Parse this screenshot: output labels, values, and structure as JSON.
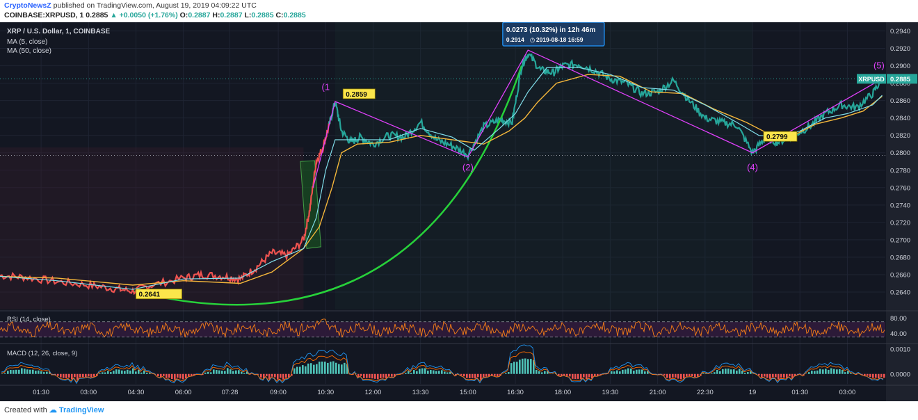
{
  "header": {
    "publisher": "CryptoNewsZ",
    "published_text": "published on TradingView.com, August 19, 2019 04:09:22 UTC",
    "symbol": "COINBASE:XRPUSD, 1",
    "last": "0.2885",
    "change": "+0.0050 (+1.76%)",
    "o_label": "O:",
    "o": "0.2887",
    "h_label": "H:",
    "h": "0.2887",
    "l_label": "L:",
    "l": "0.2885",
    "c_label": "C:",
    "c": "0.2885"
  },
  "footer": {
    "created_with": "Created with",
    "brand": "TradingView"
  },
  "chart_data": {
    "type": "line",
    "title": "XRP / U.S. Dollar, 1, COINBASE",
    "legend": [
      "MA (5, close)",
      "MA (50, close)"
    ],
    "x_ticks": [
      "01:30",
      "03:00",
      "04:30",
      "06:00",
      "07:28",
      "09:00",
      "10:30",
      "12:00",
      "13:30",
      "15:00",
      "16:30",
      "18:00",
      "19:30",
      "21:00",
      "22:30",
      "19",
      "01:30",
      "03:00"
    ],
    "x_tick_hours": [
      1.5,
      3,
      4.5,
      6,
      7.47,
      9,
      10.5,
      12,
      13.5,
      15,
      16.5,
      18,
      19.5,
      21,
      22.5,
      24,
      25.5,
      27
    ],
    "x_range_hours": [
      0.2,
      28.2
    ],
    "ylim": [
      0.262,
      0.295
    ],
    "y_ticks": [
      "0.2940",
      "0.2920",
      "0.2900",
      "0.2880",
      "0.2860",
      "0.2840",
      "0.2820",
      "0.2800",
      "0.2780",
      "0.2760",
      "0.2740",
      "0.2720",
      "0.2700",
      "0.2680",
      "0.2660",
      "0.2640"
    ],
    "y_tick_values": [
      0.294,
      0.292,
      0.29,
      0.288,
      0.286,
      0.284,
      0.282,
      0.28,
      0.278,
      0.276,
      0.274,
      0.272,
      0.27,
      0.268,
      0.266,
      0.264
    ],
    "price_series": {
      "name": "XRPUSD",
      "x": [
        0.2,
        1.0,
        2.0,
        3.0,
        3.8,
        4.4,
        5.0,
        6.0,
        6.6,
        7.3,
        7.8,
        8.3,
        8.8,
        9.3,
        9.8,
        10.0,
        10.2,
        10.4,
        10.6,
        10.8,
        11.0,
        11.3,
        11.6,
        12.0,
        12.5,
        13.0,
        13.5,
        14.0,
        14.5,
        15.0,
        15.5,
        16.0,
        16.4,
        16.7,
        16.9,
        17.3,
        17.7,
        18.0,
        18.5,
        19.0,
        19.5,
        20.0,
        20.5,
        21.0,
        21.5,
        22.0,
        22.5,
        23.0,
        23.5,
        24.0,
        24.4,
        24.8,
        25.3,
        25.8,
        26.3,
        26.8,
        27.3,
        27.8,
        28.1
      ],
      "y": [
        0.2659,
        0.2657,
        0.2652,
        0.2648,
        0.2644,
        0.2641,
        0.2648,
        0.2656,
        0.266,
        0.2658,
        0.2655,
        0.2668,
        0.2685,
        0.2682,
        0.27,
        0.2735,
        0.279,
        0.2805,
        0.283,
        0.2859,
        0.2825,
        0.2812,
        0.2818,
        0.281,
        0.282,
        0.2818,
        0.2835,
        0.2815,
        0.2808,
        0.2798,
        0.283,
        0.2838,
        0.2835,
        0.29,
        0.2914,
        0.2895,
        0.2892,
        0.29,
        0.2902,
        0.2895,
        0.2885,
        0.288,
        0.2868,
        0.287,
        0.2883,
        0.286,
        0.284,
        0.2835,
        0.2832,
        0.28,
        0.2817,
        0.2812,
        0.282,
        0.283,
        0.2845,
        0.2855,
        0.2852,
        0.2868,
        0.2885
      ]
    },
    "ma5_series": {
      "name": "MA (5, close)",
      "x": [
        0.2,
        2.0,
        4.4,
        6.0,
        7.8,
        8.8,
        9.8,
        10.2,
        10.5,
        10.8,
        11.5,
        12.5,
        13.5,
        14.5,
        15.2,
        16.0,
        16.5,
        16.9,
        17.5,
        18.5,
        19.5,
        20.5,
        21.5,
        22.5,
        23.5,
        24.2,
        24.8,
        25.5,
        26.3,
        27.0,
        27.8,
        28.1
      ],
      "y": [
        0.2658,
        0.2653,
        0.2643,
        0.2655,
        0.2656,
        0.2675,
        0.269,
        0.2725,
        0.278,
        0.2815,
        0.2815,
        0.2815,
        0.2828,
        0.2818,
        0.2803,
        0.2828,
        0.2845,
        0.287,
        0.2898,
        0.2898,
        0.289,
        0.2875,
        0.2872,
        0.2855,
        0.2835,
        0.282,
        0.2818,
        0.2825,
        0.284,
        0.2845,
        0.2855,
        0.2866
      ]
    },
    "ma50_series": {
      "name": "MA (50, close)",
      "x": [
        0.2,
        2.0,
        4.4,
        6.0,
        7.8,
        8.8,
        9.8,
        10.3,
        10.7,
        11.0,
        11.5,
        12.5,
        13.5,
        14.5,
        15.5,
        16.3,
        16.8,
        17.2,
        17.8,
        18.8,
        19.8,
        20.8,
        21.8,
        22.8,
        23.8,
        24.5,
        25.3,
        26.0,
        26.8,
        27.5,
        28.1
      ],
      "y": [
        0.2658,
        0.2656,
        0.2648,
        0.2653,
        0.265,
        0.2663,
        0.269,
        0.2715,
        0.276,
        0.28,
        0.281,
        0.2812,
        0.282,
        0.2815,
        0.281,
        0.2825,
        0.284,
        0.2858,
        0.288,
        0.289,
        0.2888,
        0.287,
        0.2868,
        0.285,
        0.2835,
        0.2822,
        0.282,
        0.2833,
        0.284,
        0.2848,
        0.2865
      ]
    },
    "elliott_wave": {
      "labels": [
        "(1",
        "(2)",
        "(4)",
        "(5)"
      ],
      "points_x": [
        10.8,
        15.0,
        16.9,
        24.0,
        28.1
      ],
      "points_y": [
        0.2859,
        0.2795,
        0.2918,
        0.28,
        0.2885
      ]
    },
    "annotations": {
      "high_1": "0.2859",
      "low_start": "0.2641",
      "low_4": "0.2799",
      "measure_line1": "0.0273 (10.32%) in 12h 46m",
      "measure_line2": "0.2914",
      "measure_time": "2019-08-18  16:59",
      "last_price_label": "XRPUSD",
      "last_price": "0.2885",
      "dotted_level": 0.2797
    },
    "rsi": {
      "label": "RSI (14, close)",
      "ticks": [
        "80.00",
        "40.00"
      ],
      "tick_values": [
        80,
        40
      ],
      "upper": 70,
      "lower": 30,
      "range": [
        15,
        95
      ]
    },
    "macd": {
      "label": "MACD (12, 26, close, 9)",
      "ticks": [
        "0.0010",
        "0.0000"
      ],
      "tick_values": [
        0.001,
        0.0
      ],
      "range": [
        -0.0004,
        0.0012
      ]
    },
    "colors": {
      "background": "#131722",
      "price_up": "#26a69a",
      "price_down": "#ef5350",
      "ma5": "#80deea",
      "ma50": "#f5b73b",
      "wave": "#e040fb",
      "curve": "#27d13a",
      "highlight": "#fbe64b",
      "measure": "#1e88e5",
      "rsi_line": "#f57f17"
    }
  }
}
